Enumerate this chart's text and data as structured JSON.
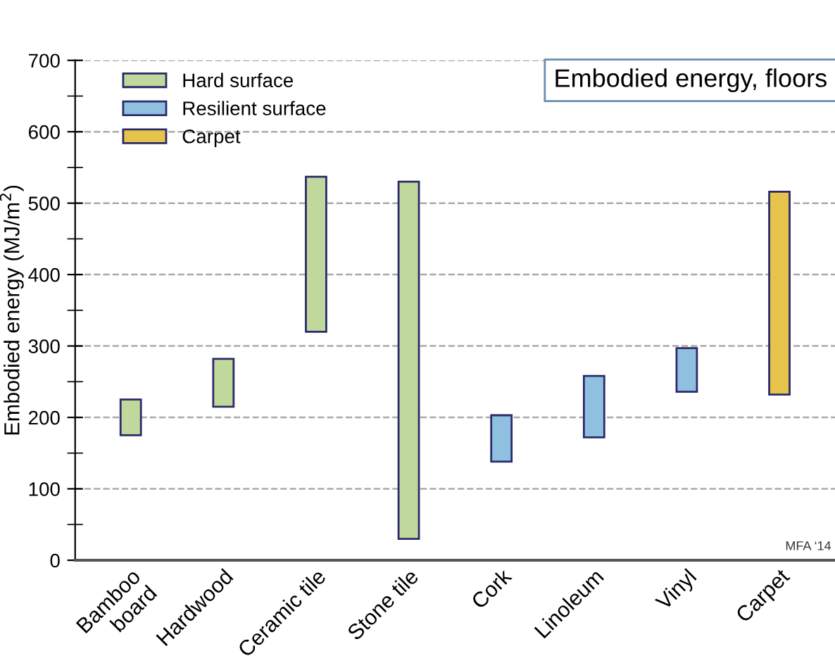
{
  "chart_data": {
    "type": "bar",
    "title": "Embodied energy, floors",
    "ylabel": "Embodied energy (MJ/m$^{2}$)",
    "categories": [
      "Bamboo\nboard",
      "Hardwood",
      "Ceramic tile",
      "Stone tile",
      "Cork",
      "Linoleum",
      "Vinyl",
      "Carpet"
    ],
    "series": [
      {
        "name": "Hard surface",
        "color": "#c0d89c",
        "base": [
          175,
          215,
          320,
          30,
          null,
          null,
          null,
          null
        ],
        "values": [
          50,
          67,
          217,
          500,
          null,
          null,
          null,
          null
        ]
      },
      {
        "name": "Resilient surface",
        "color": "#90c0e0",
        "base": [
          null,
          null,
          null,
          null,
          138,
          172,
          236,
          null
        ],
        "values": [
          null,
          null,
          null,
          null,
          65,
          86,
          61,
          null
        ]
      },
      {
        "name": "Carpet",
        "color": "#e6c34a",
        "base": [
          null,
          null,
          null,
          null,
          null,
          null,
          null,
          232
        ],
        "values": [
          null,
          null,
          null,
          null,
          null,
          null,
          null,
          284
        ]
      }
    ],
    "ylim": [
      0,
      700
    ],
    "yticks": [
      0,
      {
        "value": 50,
        "label": null
      },
      100,
      {
        "value": 150,
        "label": null
      },
      200,
      {
        "value": 250,
        "label": null
      },
      300,
      {
        "value": 350,
        "label": null
      },
      400,
      {
        "value": 450,
        "label": null
      },
      500,
      {
        "value": 550,
        "label": null
      },
      600,
      {
        "value": 650,
        "label": null
      },
      700
    ],
    "grid": "y",
    "legend": "top left",
    "annotations": [
      "MFA ‘14"
    ]
  }
}
